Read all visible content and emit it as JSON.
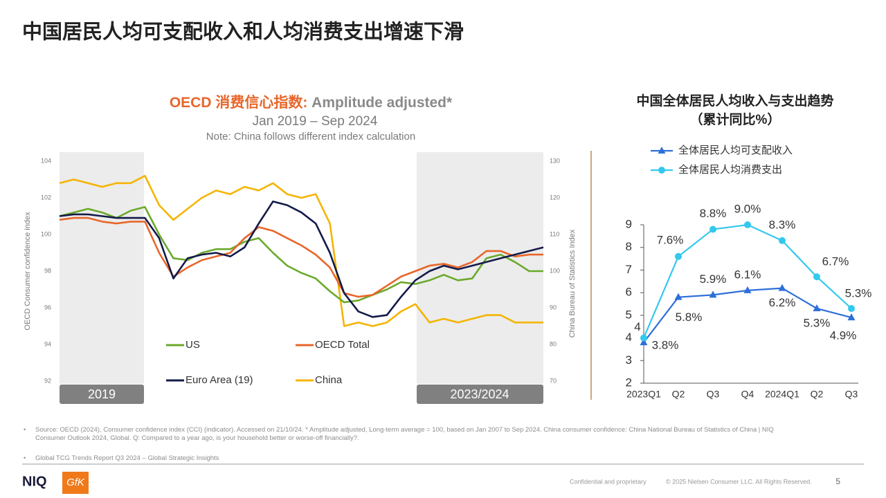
{
  "header": {
    "title": "中国居民人均可支配收入和人均消费支出增速下滑"
  },
  "chart_data": [
    {
      "type": "line",
      "title_parts": [
        "OECD 消费信心指数:",
        "Amplitude adjusted*"
      ],
      "subtitle": "Jan 2019 – Sep 2024",
      "note": "Note: China follows different index calculation",
      "period_labels": [
        "2019",
        "2023/2024"
      ],
      "ylabel": "OECD Consumer confidence index",
      "y2label": "China Bureau of Statistics Index",
      "ylim": [
        92,
        104
      ],
      "yticks": [
        92,
        94,
        96,
        98,
        100,
        102,
        104
      ],
      "y2lim": [
        70,
        130
      ],
      "y2ticks": [
        70,
        80,
        90,
        100,
        110,
        120,
        130
      ],
      "categories": [
        null,
        null,
        null,
        null,
        null,
        null,
        null,
        null,
        null,
        null,
        null,
        null,
        null,
        null,
        null,
        null,
        null,
        null,
        null,
        null,
        null,
        null,
        null,
        null,
        null,
        null,
        null,
        null,
        null,
        null,
        null,
        null,
        null,
        null,
        null
      ],
      "series": [
        {
          "name": "US",
          "color": "#6aaa2a",
          "values": [
            101.0,
            101.2,
            101.4,
            101.2,
            100.9,
            101.3,
            101.5,
            100.0,
            98.7,
            98.6,
            99.0,
            99.2,
            99.2,
            99.6,
            99.8,
            99.0,
            98.3,
            97.9,
            97.6,
            96.9,
            96.3,
            96.4,
            96.7,
            97.0,
            97.4,
            97.3,
            97.5,
            97.8,
            97.5,
            97.6,
            98.7,
            98.9,
            98.5,
            98.0,
            98.0
          ]
        },
        {
          "name": "OECD Total",
          "color": "#e8662a",
          "values": [
            100.8,
            100.9,
            100.9,
            100.7,
            100.6,
            100.7,
            100.7,
            99.0,
            97.7,
            98.2,
            98.6,
            98.8,
            99.0,
            99.8,
            100.4,
            100.2,
            99.8,
            99.4,
            98.9,
            98.2,
            96.8,
            96.6,
            96.7,
            97.2,
            97.7,
            98.0,
            98.3,
            98.4,
            98.2,
            98.5,
            99.1,
            99.1,
            98.8,
            98.9,
            98.9
          ]
        },
        {
          "name": "Euro Area (19)",
          "color": "#141a4a",
          "values": [
            101.0,
            101.1,
            101.1,
            101.0,
            100.9,
            100.9,
            100.9,
            99.8,
            97.6,
            98.7,
            98.9,
            99.0,
            98.8,
            99.3,
            100.6,
            101.8,
            101.6,
            101.2,
            100.6,
            99.0,
            96.8,
            95.8,
            95.5,
            95.6,
            96.6,
            97.5,
            98.0,
            98.3,
            98.1,
            98.3,
            98.5,
            98.7,
            98.9,
            99.1,
            99.3
          ]
        },
        {
          "name": "China",
          "color": "#f5b400",
          "axis": "y2",
          "values": [
            124,
            125,
            124,
            123,
            124,
            124,
            126,
            118,
            114,
            117,
            120,
            122,
            121,
            123,
            122,
            124,
            121,
            120,
            121,
            113,
            85,
            86,
            85,
            86,
            89,
            91,
            86,
            87,
            86,
            87,
            88,
            88,
            86,
            86,
            86
          ]
        }
      ]
    },
    {
      "type": "line",
      "title": "中国全体居民人均收入与支出趋势",
      "subtitle": "（累计同比%）",
      "categories": [
        "2023Q1",
        "Q2",
        "Q3",
        "Q4",
        "2024Q1",
        "Q2",
        "Q3"
      ],
      "ylim": [
        2,
        9
      ],
      "yticks": [
        2,
        3,
        4,
        5,
        6,
        7,
        8,
        9
      ],
      "series": [
        {
          "name": "全体居民人均可支配收入",
          "color": "#2e6fd8",
          "marker": "triangle",
          "values": [
            3.8,
            5.8,
            5.9,
            6.1,
            6.2,
            5.3,
            4.9
          ],
          "value_labels": [
            "3.8%",
            "5.8%",
            "5.9%",
            "6.1%",
            "6.2%",
            "5.3%",
            "4.9%"
          ]
        },
        {
          "name": "全体居民人均消费支出",
          "color": "#33c8ee",
          "marker": "circle",
          "values": [
            4,
            7.6,
            8.8,
            9.0,
            8.3,
            6.7,
            5.3
          ],
          "value_labels": [
            "4",
            "7.6%",
            "8.8%",
            "9.0%",
            "8.3%",
            "6.7%",
            "5.3%"
          ]
        }
      ]
    }
  ],
  "footnotes": [
    "Source: OECD (2024), Consumer confidence index (CCI) (indicator). Accessed on 21/10/24. * Amplitude adjusted, Long-term average = 100, based on Jan 2007 to Sep 2024. China consumer confidence: China National Bureau of Statistics of China | NIQ Consumer Outlook 2024, Global. Q: Compared to a year ago, is your household better or worse-off financially?.",
    "Global TCG Trends Report Q3 2024 – Global Strategic Insights"
  ],
  "footer": {
    "logo_1": "NIQ",
    "logo_2": "GfK",
    "confidential": "Confidential and proprietary",
    "copyright": "© 2025 Nielsen Consumer LLC. All Rights Reserved.",
    "page": "5"
  }
}
